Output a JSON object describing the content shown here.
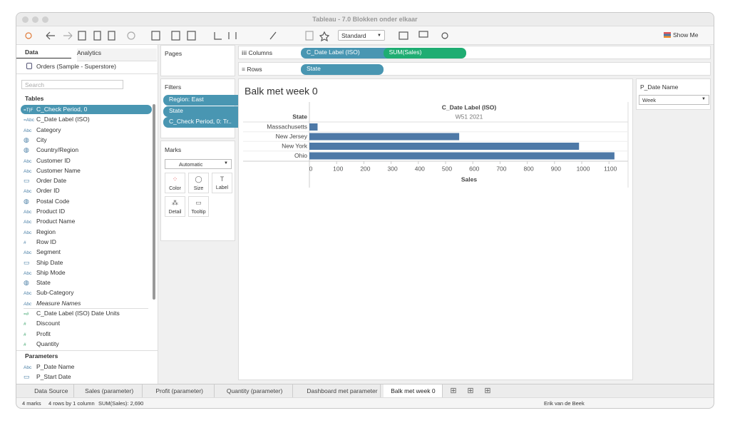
{
  "window": {
    "title": "Tableau - 7.0 Blokken onder elkaar"
  },
  "toolbar": {
    "fit": "Standard",
    "show_me": "Show Me"
  },
  "data_pane": {
    "tabs": [
      "Data",
      "Analytics"
    ],
    "source": "Orders (Sample - Superstore)",
    "search_placeholder": "Search",
    "tables_heading": "Tables",
    "dimensions": [
      {
        "icon": "=T|F",
        "name": "C_Check Period, 0",
        "selected": true
      },
      {
        "icon": "=Abc",
        "name": "C_Date Label (ISO)"
      },
      {
        "icon": "Abc",
        "name": "Category"
      },
      {
        "kind": "geo",
        "name": "City"
      },
      {
        "kind": "geo",
        "name": "Country/Region"
      },
      {
        "icon": "Abc",
        "name": "Customer ID"
      },
      {
        "icon": "Abc",
        "name": "Customer Name"
      },
      {
        "kind": "date",
        "name": "Order Date"
      },
      {
        "icon": "Abc",
        "name": "Order ID"
      },
      {
        "kind": "geo",
        "name": "Postal Code"
      },
      {
        "icon": "Abc",
        "name": "Product ID"
      },
      {
        "icon": "Abc",
        "name": "Product Name"
      },
      {
        "icon": "Abc",
        "name": "Region"
      },
      {
        "icon": "#",
        "name": "Row ID"
      },
      {
        "icon": "Abc",
        "name": "Segment"
      },
      {
        "kind": "date",
        "name": "Ship Date"
      },
      {
        "icon": "Abc",
        "name": "Ship Mode"
      },
      {
        "kind": "geo",
        "name": "State"
      },
      {
        "icon": "Abc",
        "name": "Sub-Category"
      },
      {
        "icon": "Abc",
        "name": "Measure Names",
        "italic": true
      }
    ],
    "measures": [
      {
        "icon": "=#",
        "name": "C_Date Label (ISO) Date Units"
      },
      {
        "icon": "#",
        "name": "Discount"
      },
      {
        "icon": "#",
        "name": "Profit"
      },
      {
        "icon": "#",
        "name": "Quantity"
      }
    ],
    "parameters_heading": "Parameters",
    "parameters": [
      {
        "icon": "Abc",
        "name": "P_Date Name"
      },
      {
        "kind": "date",
        "name": "P_Start Date"
      }
    ]
  },
  "cards": {
    "pages": "Pages",
    "filters": "Filters",
    "filter_pills": [
      "Region: East",
      "State",
      "C_Check Period, 0: Tr.."
    ],
    "marks": "Marks",
    "mark_type": "Automatic",
    "mark_buttons": [
      "Color",
      "Size",
      "Label",
      "Detail",
      "Tooltip"
    ]
  },
  "shelves": {
    "columns_label": "Columns",
    "columns": [
      "C_Date Label (ISO)",
      "SUM(Sales)"
    ],
    "rows_label": "Rows",
    "rows": [
      "State"
    ]
  },
  "chart_data": {
    "type": "bar",
    "orientation": "horizontal",
    "title": "Balk met week 0",
    "column_header": "C_Date Label (ISO)",
    "column_value": "W51 2021",
    "row_header": "State",
    "x_label": "Sales",
    "color": "#4e79a7",
    "categories": [
      "Massachusetts",
      "New Jersey",
      "New York",
      "Ohio"
    ],
    "values": [
      30,
      550,
      990,
      1120
    ],
    "xlim": [
      0,
      1170
    ],
    "xticks": [
      0,
      100,
      200,
      300,
      400,
      500,
      600,
      700,
      800,
      900,
      1000,
      1100
    ]
  },
  "parameter_card": {
    "title": "P_Date Name",
    "value": "Week"
  },
  "sheet_tabs": [
    "Data Source",
    "Sales (parameter)",
    "Profit (parameter)",
    "Quantity (parameter)",
    "Dashboard met parameter",
    "Balk met week 0"
  ],
  "status": {
    "marks": "4 marks",
    "rows": "4 rows by 1 column",
    "sum": "SUM(Sales): 2,690",
    "user": "Erik van de Beek"
  }
}
